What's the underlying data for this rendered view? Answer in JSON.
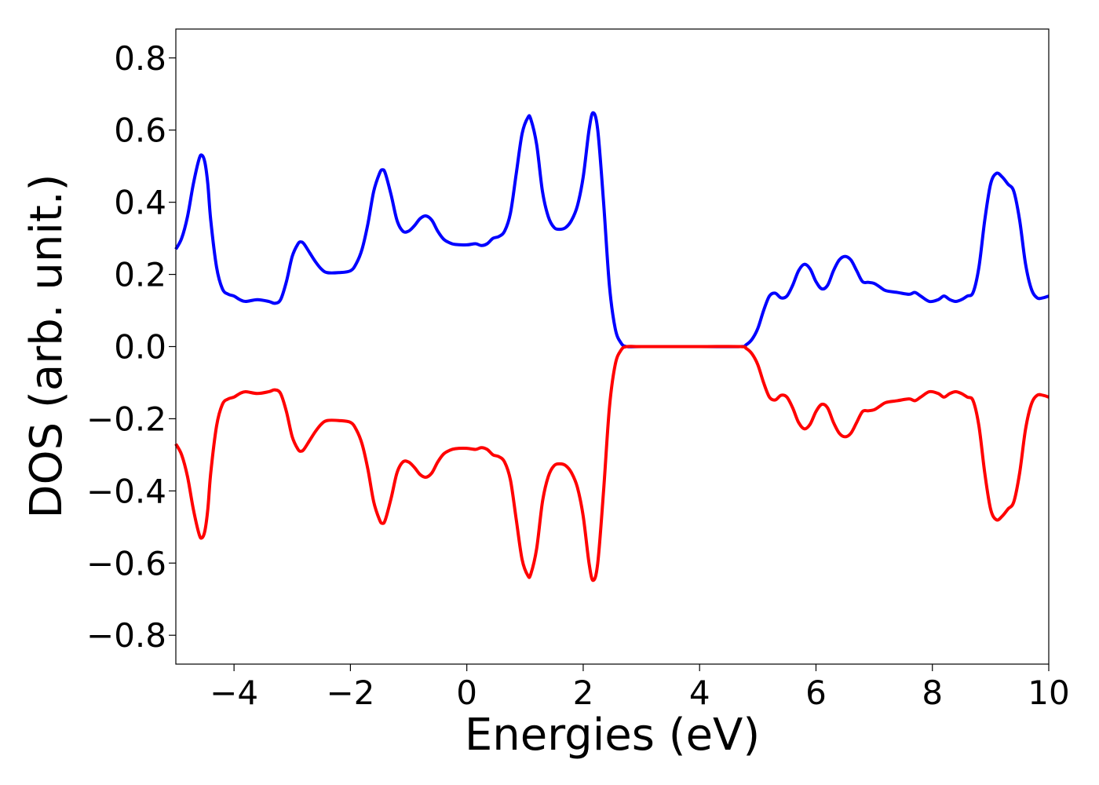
{
  "chart_data": {
    "type": "line",
    "title": "",
    "xlabel": "Energies (eV)",
    "ylabel": "DOS (arb. unit.)",
    "xlim": [
      -5,
      10
    ],
    "ylim": [
      -0.88,
      0.88
    ],
    "xticks": [
      -4,
      -2,
      0,
      2,
      4,
      6,
      8,
      10
    ],
    "xtick_labels": [
      "−4",
      "−2",
      "0",
      "2",
      "4",
      "6",
      "8",
      "10"
    ],
    "yticks": [
      0.8,
      0.6,
      0.4,
      0.2,
      0.0,
      -0.2,
      -0.4,
      -0.6,
      -0.8
    ],
    "ytick_labels": [
      "0.8",
      "0.6",
      "0.4",
      "0.2",
      "0.0",
      "−0.2",
      "−0.4",
      "−0.6",
      "−0.8"
    ],
    "grid": false,
    "legend": "none",
    "series": [
      {
        "color": "#0000ff",
        "points": [
          [
            -5.0,
            0.27
          ],
          [
            -4.9,
            0.3
          ],
          [
            -4.8,
            0.36
          ],
          [
            -4.7,
            0.45
          ],
          [
            -4.6,
            0.52
          ],
          [
            -4.55,
            0.53
          ],
          [
            -4.5,
            0.51
          ],
          [
            -4.45,
            0.45
          ],
          [
            -4.4,
            0.35
          ],
          [
            -4.3,
            0.22
          ],
          [
            -4.2,
            0.16
          ],
          [
            -4.1,
            0.145
          ],
          [
            -4.0,
            0.14
          ],
          [
            -3.9,
            0.13
          ],
          [
            -3.8,
            0.125
          ],
          [
            -3.6,
            0.13
          ],
          [
            -3.4,
            0.125
          ],
          [
            -3.3,
            0.12
          ],
          [
            -3.2,
            0.13
          ],
          [
            -3.1,
            0.18
          ],
          [
            -3.0,
            0.25
          ],
          [
            -2.9,
            0.285
          ],
          [
            -2.85,
            0.29
          ],
          [
            -2.8,
            0.285
          ],
          [
            -2.7,
            0.26
          ],
          [
            -2.6,
            0.235
          ],
          [
            -2.5,
            0.215
          ],
          [
            -2.4,
            0.205
          ],
          [
            -2.2,
            0.205
          ],
          [
            -2.0,
            0.21
          ],
          [
            -1.9,
            0.23
          ],
          [
            -1.8,
            0.27
          ],
          [
            -1.7,
            0.34
          ],
          [
            -1.6,
            0.43
          ],
          [
            -1.5,
            0.48
          ],
          [
            -1.45,
            0.49
          ],
          [
            -1.4,
            0.48
          ],
          [
            -1.3,
            0.42
          ],
          [
            -1.2,
            0.35
          ],
          [
            -1.1,
            0.32
          ],
          [
            -1.0,
            0.32
          ],
          [
            -0.9,
            0.335
          ],
          [
            -0.8,
            0.355
          ],
          [
            -0.7,
            0.362
          ],
          [
            -0.6,
            0.35
          ],
          [
            -0.5,
            0.32
          ],
          [
            -0.4,
            0.298
          ],
          [
            -0.3,
            0.288
          ],
          [
            -0.2,
            0.283
          ],
          [
            0.0,
            0.282
          ],
          [
            0.15,
            0.285
          ],
          [
            0.25,
            0.28
          ],
          [
            0.35,
            0.285
          ],
          [
            0.45,
            0.3
          ],
          [
            0.55,
            0.305
          ],
          [
            0.65,
            0.32
          ],
          [
            0.75,
            0.37
          ],
          [
            0.85,
            0.48
          ],
          [
            0.95,
            0.59
          ],
          [
            1.05,
            0.635
          ],
          [
            1.1,
            0.63
          ],
          [
            1.2,
            0.56
          ],
          [
            1.3,
            0.43
          ],
          [
            1.4,
            0.36
          ],
          [
            1.5,
            0.33
          ],
          [
            1.6,
            0.325
          ],
          [
            1.7,
            0.33
          ],
          [
            1.8,
            0.35
          ],
          [
            1.9,
            0.39
          ],
          [
            2.0,
            0.47
          ],
          [
            2.1,
            0.6
          ],
          [
            2.17,
            0.648
          ],
          [
            2.25,
            0.6
          ],
          [
            2.35,
            0.4
          ],
          [
            2.45,
            0.17
          ],
          [
            2.55,
            0.05
          ],
          [
            2.65,
            0.01
          ],
          [
            2.75,
            0.0
          ],
          [
            3.0,
            0.0
          ],
          [
            4.0,
            0.0
          ],
          [
            4.7,
            0.0
          ],
          [
            4.8,
            0.005
          ],
          [
            4.9,
            0.02
          ],
          [
            5.0,
            0.05
          ],
          [
            5.1,
            0.1
          ],
          [
            5.2,
            0.14
          ],
          [
            5.3,
            0.148
          ],
          [
            5.4,
            0.135
          ],
          [
            5.5,
            0.14
          ],
          [
            5.6,
            0.17
          ],
          [
            5.7,
            0.21
          ],
          [
            5.8,
            0.228
          ],
          [
            5.9,
            0.215
          ],
          [
            6.0,
            0.18
          ],
          [
            6.1,
            0.16
          ],
          [
            6.2,
            0.17
          ],
          [
            6.3,
            0.21
          ],
          [
            6.4,
            0.24
          ],
          [
            6.5,
            0.25
          ],
          [
            6.6,
            0.24
          ],
          [
            6.7,
            0.21
          ],
          [
            6.8,
            0.18
          ],
          [
            6.9,
            0.178
          ],
          [
            7.0,
            0.175
          ],
          [
            7.1,
            0.165
          ],
          [
            7.2,
            0.155
          ],
          [
            7.4,
            0.15
          ],
          [
            7.6,
            0.145
          ],
          [
            7.7,
            0.15
          ],
          [
            7.8,
            0.14
          ],
          [
            7.95,
            0.125
          ],
          [
            8.1,
            0.13
          ],
          [
            8.2,
            0.14
          ],
          [
            8.3,
            0.13
          ],
          [
            8.4,
            0.125
          ],
          [
            8.5,
            0.13
          ],
          [
            8.6,
            0.14
          ],
          [
            8.7,
            0.15
          ],
          [
            8.8,
            0.22
          ],
          [
            8.9,
            0.35
          ],
          [
            9.0,
            0.45
          ],
          [
            9.1,
            0.48
          ],
          [
            9.2,
            0.47
          ],
          [
            9.3,
            0.45
          ],
          [
            9.4,
            0.43
          ],
          [
            9.5,
            0.35
          ],
          [
            9.6,
            0.23
          ],
          [
            9.7,
            0.16
          ],
          [
            9.8,
            0.135
          ],
          [
            9.9,
            0.135
          ],
          [
            10.0,
            0.14
          ]
        ]
      },
      {
        "color": "#ff0000",
        "mirror_of": 0
      }
    ]
  }
}
